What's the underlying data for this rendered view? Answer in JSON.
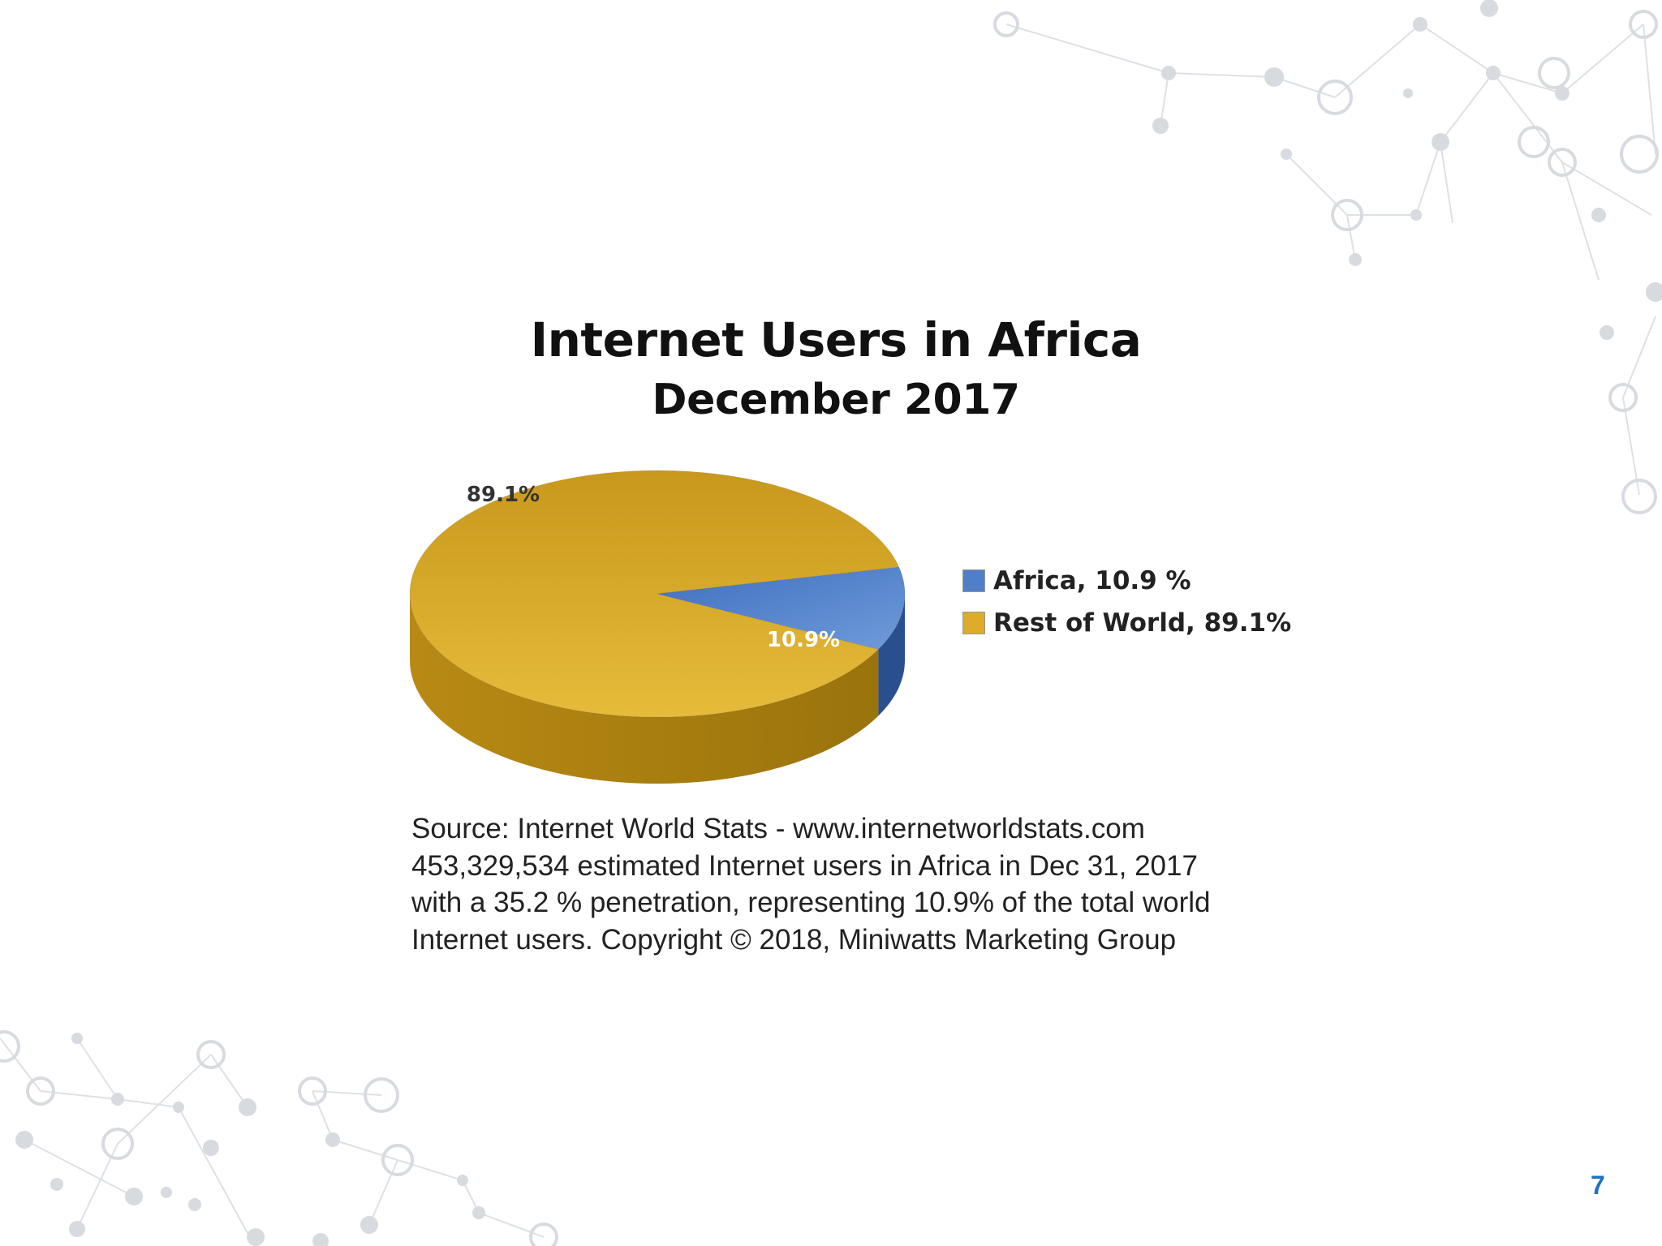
{
  "slide": {
    "page_number": "7"
  },
  "colors": {
    "africa": "#4f7fc9",
    "africa_side": "#2a4f8f",
    "rest_of_world": "#dcac2a",
    "rest_side": "#a67e10",
    "page_number": "#1e73be",
    "decoration": "#d5d9de"
  },
  "chart_data": {
    "type": "pie",
    "title": "Internet Users in Africa",
    "subtitle": "December 2017",
    "categories": [
      "Africa",
      "Rest of World"
    ],
    "values": [
      10.9,
      89.1
    ],
    "data_labels": [
      "10.9%",
      "89.1%"
    ],
    "legend": [
      "Africa, 10.9 %",
      "Rest of World, 89.1%"
    ],
    "legend_position": "right",
    "style": "3d"
  },
  "source": {
    "lines": [
      "Source: Internet World Stats - www.internetworldstats.com",
      "453,329,534 estimated Internet users in Africa in Dec 31, 2017",
      "with a 35.2 % penetration, representing 10.9% of the total world",
      "Internet users. Copyright © 2018, Miniwatts Marketing Group"
    ]
  }
}
